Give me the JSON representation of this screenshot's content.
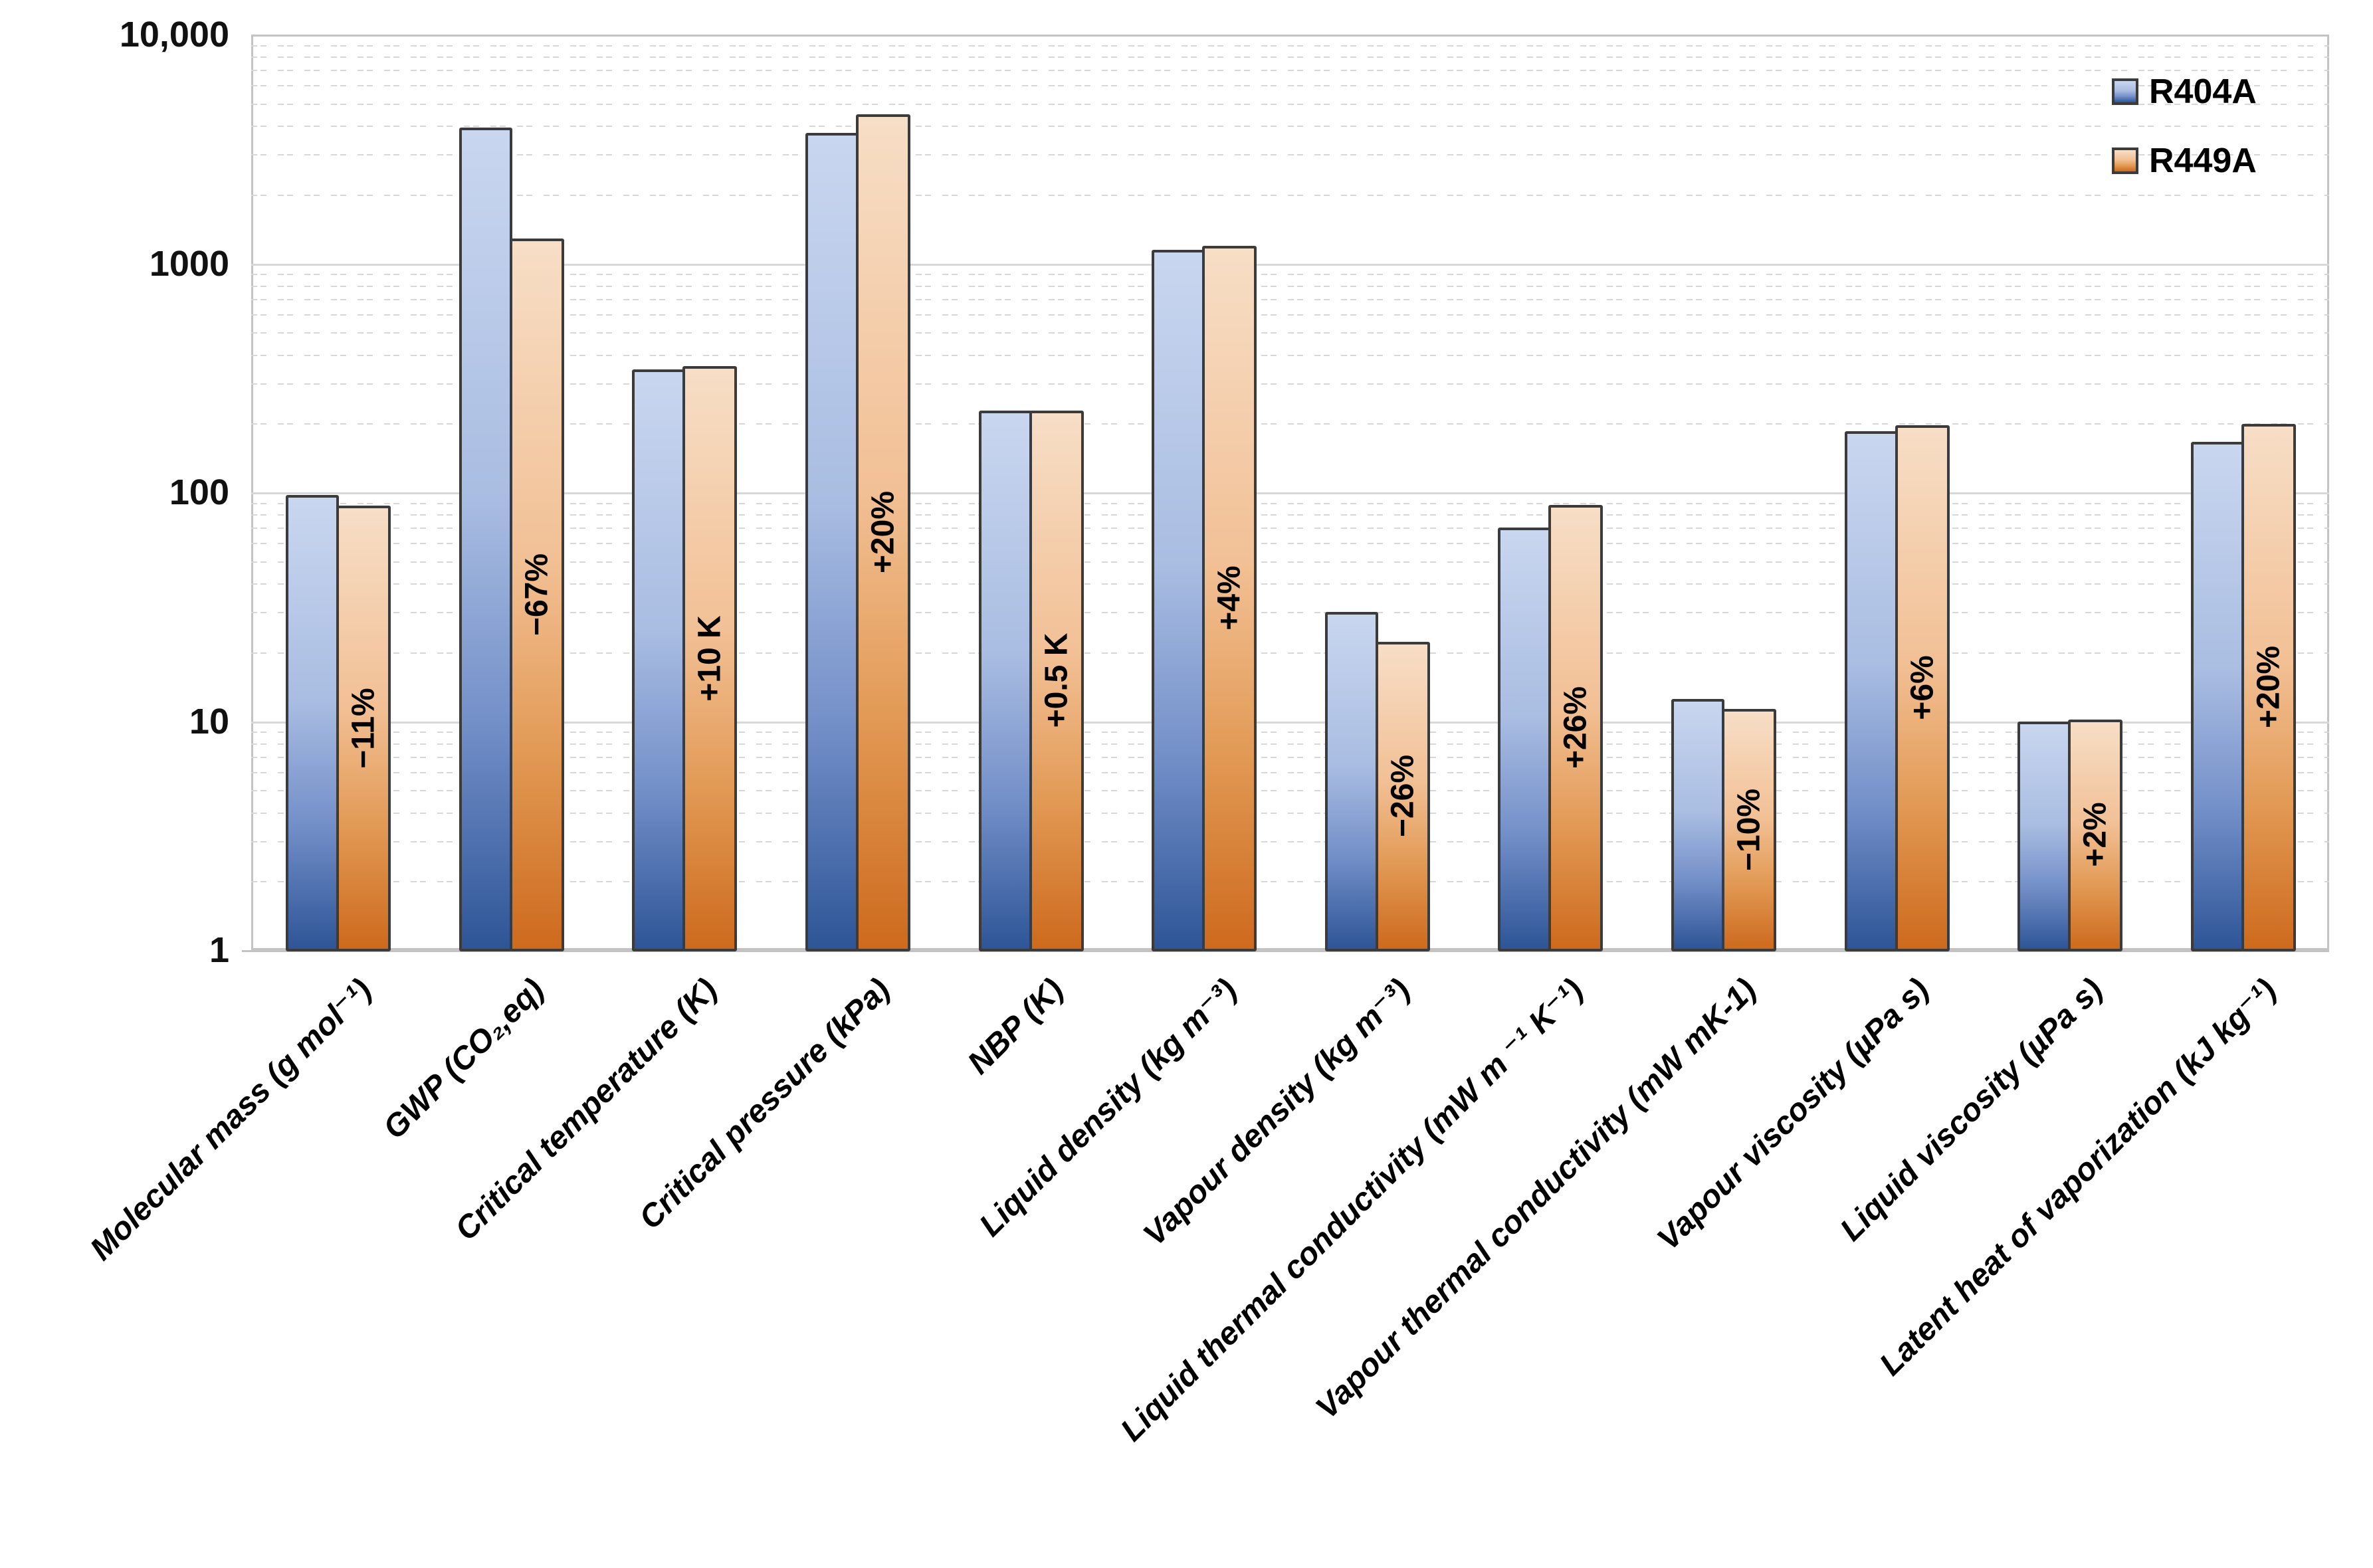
{
  "chart_data": {
    "type": "bar",
    "y_scale": "log",
    "ylim": [
      1,
      10000
    ],
    "y_ticks": [
      {
        "value": 1,
        "label": "1"
      },
      {
        "value": 10,
        "label": "10"
      },
      {
        "value": 100,
        "label": "100"
      },
      {
        "value": 1000,
        "label": "1000"
      },
      {
        "value": 10000,
        "label": "10,000"
      }
    ],
    "grid": {
      "major": "solid",
      "minor": "dashed-log-subdivisions"
    },
    "legend_position": "top-right-inside",
    "categories": [
      "Molecular mass (g mol⁻¹)",
      "GWP (CO₂,eq)",
      "Critical temperature (K)",
      "Critical pressure (kPa)",
      "NBP (K)",
      "Liquid density (kg m⁻³)",
      "Vapour density (kg m⁻³)",
      "Liquid thermal conductivity (mW m ⁻¹ K⁻¹)",
      "Vapour thermal conductivity (mW mK-1)",
      "Vapour viscosity (µPa s)",
      "Liquid viscosity (µPa s)",
      "Latent heat of vaporization (kJ kg⁻¹)"
    ],
    "series": [
      {
        "name": "R404A",
        "values": [
          97.6,
          3922,
          345,
          3729,
          227,
          1150,
          30,
          70,
          12.5,
          185,
          10,
          166
        ],
        "gradient": [
          "#c9d6ef",
          "#a9bde2",
          "#7490c9",
          "#2e5597"
        ]
      },
      {
        "name": "R449A",
        "values": [
          87.2,
          1282,
          355,
          4475,
          227.5,
          1196,
          22.2,
          88.2,
          11.3,
          196,
          10.2,
          199
        ],
        "gradient": [
          "#f7dec6",
          "#f2c095",
          "#e29a55",
          "#cd6a1d"
        ]
      }
    ],
    "annotations_on_r449a_bars": [
      "−11%",
      "−67%",
      "+10 K",
      "+20%",
      "+0.5 K",
      "+4%",
      "−26%",
      "+26%",
      "−10%",
      "+6%",
      "+2%",
      "+20%"
    ]
  },
  "legend": {
    "items": [
      {
        "label": "R404A"
      },
      {
        "label": "R449A"
      }
    ]
  },
  "colors": {
    "bar_outline": "#3b3b3b",
    "grid_major": "#d8d8d8",
    "grid_minor": "#d7d7d7",
    "plot_border": "#c3c3c3",
    "text": "#000000",
    "r404a_top": "#c9d6ef",
    "r404a_bottom": "#2e5597",
    "r449a_top": "#f7dec6",
    "r449a_bottom": "#cd6a1d"
  }
}
